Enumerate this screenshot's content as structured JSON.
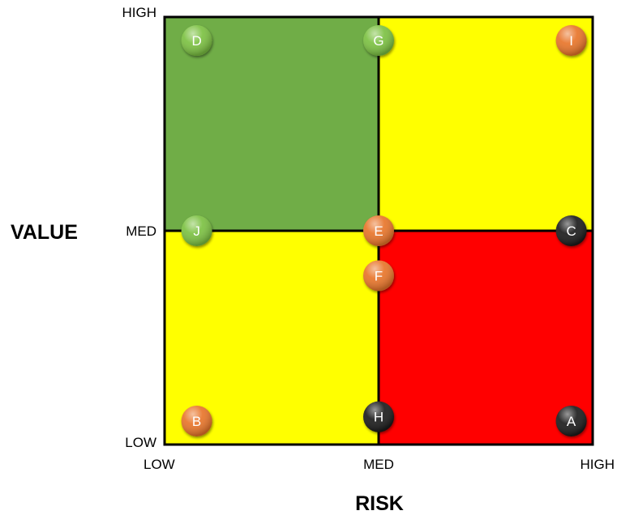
{
  "chart_data": {
    "type": "scatter",
    "title": "",
    "xlabel": "RISK",
    "ylabel": "VALUE",
    "xlim": [
      0,
      2
    ],
    "ylim": [
      0,
      2
    ],
    "x_ticks": [
      {
        "value": 0,
        "label": "LOW"
      },
      {
        "value": 1,
        "label": "MED"
      },
      {
        "value": 2,
        "label": "HIGH"
      }
    ],
    "y_ticks": [
      {
        "value": 0,
        "label": "LOW"
      },
      {
        "value": 1,
        "label": "MED"
      },
      {
        "value": 2,
        "label": "HIGH"
      }
    ],
    "quadrants": [
      {
        "x": [
          0,
          1
        ],
        "y": [
          1,
          2
        ],
        "color": "#70ad47"
      },
      {
        "x": [
          1,
          2
        ],
        "y": [
          1,
          2
        ],
        "color": "#ffff00"
      },
      {
        "x": [
          0,
          1
        ],
        "y": [
          0,
          1
        ],
        "color": "#ffff00"
      },
      {
        "x": [
          1,
          2
        ],
        "y": [
          0,
          1
        ],
        "color": "#ff0000"
      }
    ],
    "marker_colors": {
      "green": "#7cc142",
      "orange": "#e8742a",
      "black": "#1a1a1a"
    },
    "points": [
      {
        "label": "A",
        "x": 1.9,
        "y": 0.11,
        "color": "black"
      },
      {
        "label": "B",
        "x": 0.15,
        "y": 0.11,
        "color": "orange"
      },
      {
        "label": "C",
        "x": 1.9,
        "y": 1.0,
        "color": "black"
      },
      {
        "label": "D",
        "x": 0.15,
        "y": 1.89,
        "color": "green"
      },
      {
        "label": "E",
        "x": 1.0,
        "y": 1.0,
        "color": "orange"
      },
      {
        "label": "F",
        "x": 1.0,
        "y": 0.79,
        "color": "orange"
      },
      {
        "label": "G",
        "x": 1.0,
        "y": 1.89,
        "color": "green"
      },
      {
        "label": "H",
        "x": 1.0,
        "y": 0.13,
        "color": "black"
      },
      {
        "label": "I",
        "x": 1.9,
        "y": 1.89,
        "color": "orange"
      },
      {
        "label": "J",
        "x": 0.15,
        "y": 1.0,
        "color": "green"
      }
    ]
  }
}
